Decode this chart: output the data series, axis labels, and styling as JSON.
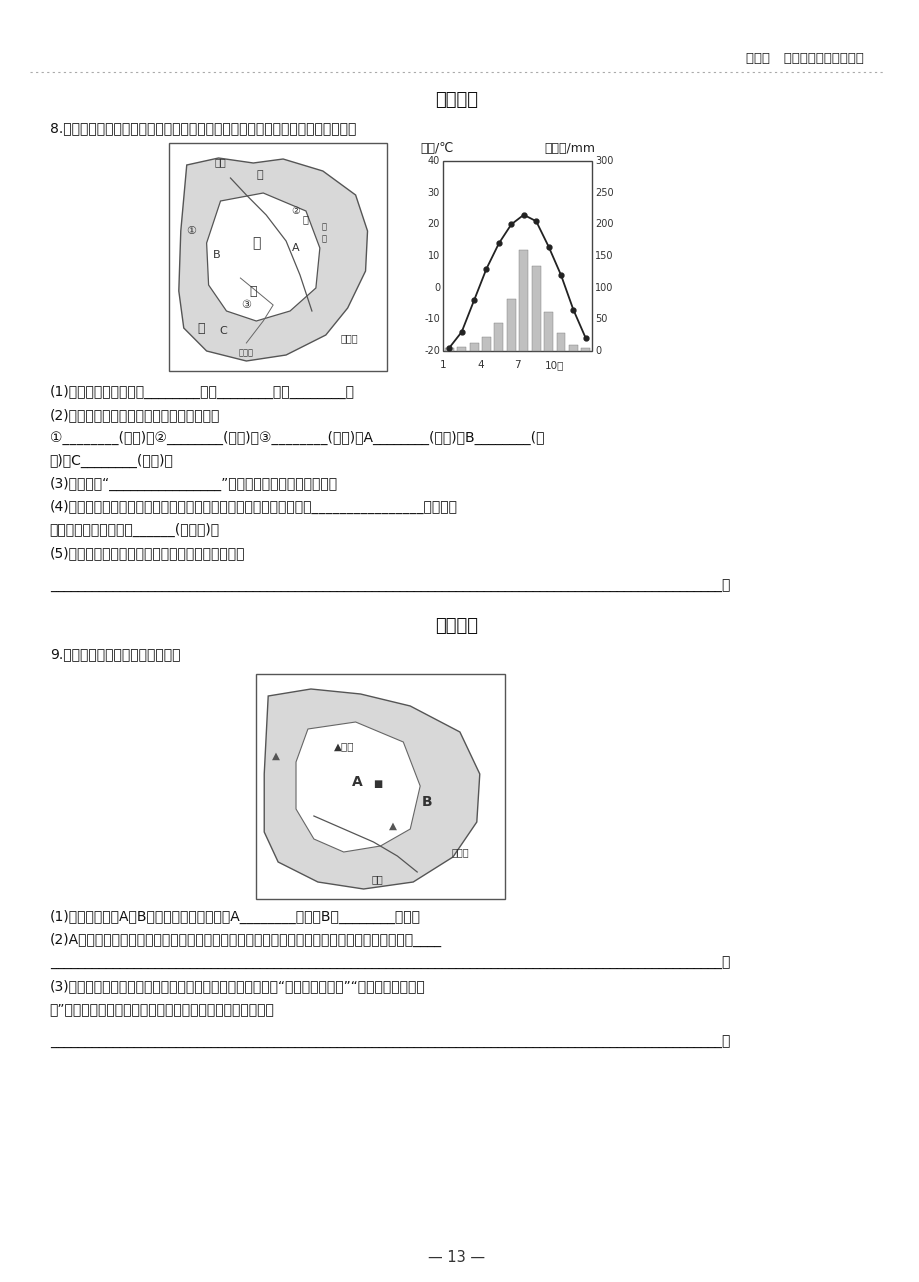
{
  "page_bg": "#ffffff",
  "header_text": "第六章   认识区域：位置与分布",
  "section1_title": "拓展提升",
  "section1_q": "8.读「东北三省轮廓图」和「哈尔滨多年平均气温和降水量图」，完成以下问题。",
  "section2_title": "发散思维",
  "section2_q": "9.读「东北地区图」，回答问题。",
  "q1_lines": [
    "(1)东北三省包括：甲：________，乙________，丙________。",
    "(2)写出下列数字和字母所代表的地理事物。",
    "①________(山脉)，②________(山脉)，③________(山脉)，A________(平原)，B________(平",
    "原)，C________(平原)。",
    "(3)人们常用“________________”来形容东北三省的山河大势。",
    "(4)从哈尔滨多年平均气温和降水量图可以看出，哈尔滨的气候特征是________________。受气候",
    "影响，图中河流结冰期______(长、短)。",
    "(5)简要分析该地区发展农业生产的有利自然条件。"
  ],
  "q1_long_line": "________________________________________________________________________________________________。",
  "q2_lines": [
    "(1)写出图中字母A、B代表的地理事物名称：A________平原，B是________山脉。",
    "(2)A地区湿地面积减少，生态环境不断恶化，你认为应该采取哪些措施来改善这里的生态环境？____",
    "________________________________________________________________________________________________。",
    "(3)东北三省与华北平原都是我国的簮食主产区，据东北三省“人口占全国比重”“簮食产量占全国比",
    "重”分析，为什么东北三省能够成为我国最大的商品粮基地？"
  ],
  "q2_long_line": "________________________________________________________________________________________________。",
  "footer": "— 13 —"
}
